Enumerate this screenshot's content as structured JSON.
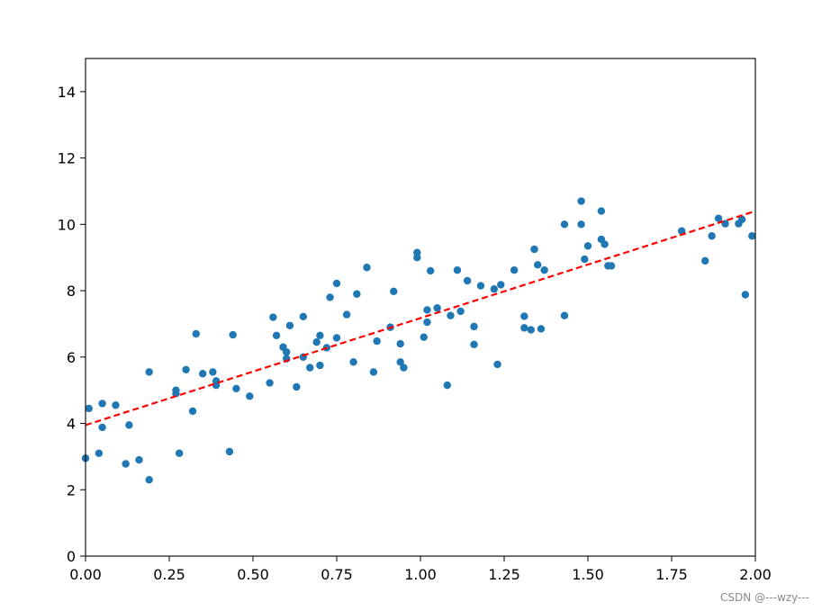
{
  "chart_data": {
    "type": "scatter",
    "title": "",
    "xlabel": "",
    "ylabel": "",
    "xlim": [
      0,
      2
    ],
    "ylim": [
      0,
      15
    ],
    "x_ticks": [
      "0.00",
      "0.25",
      "0.50",
      "0.75",
      "1.00",
      "1.25",
      "1.50",
      "1.75",
      "2.00"
    ],
    "y_ticks": [
      "0",
      "2",
      "4",
      "6",
      "8",
      "10",
      "12",
      "14"
    ],
    "grid": false,
    "legend": "none",
    "colors": {
      "points": "#1f77b4",
      "line": "#ff0000",
      "axes": "#000000"
    },
    "series": [
      {
        "type": "scatter",
        "points": [
          [
            0.0,
            2.95
          ],
          [
            0.01,
            4.45
          ],
          [
            0.04,
            3.1
          ],
          [
            0.05,
            4.6
          ],
          [
            0.05,
            3.88
          ],
          [
            0.09,
            4.55
          ],
          [
            0.12,
            2.78
          ],
          [
            0.13,
            3.95
          ],
          [
            0.16,
            2.9
          ],
          [
            0.19,
            2.3
          ],
          [
            0.19,
            5.55
          ],
          [
            0.27,
            4.9
          ],
          [
            0.27,
            5.0
          ],
          [
            0.28,
            3.1
          ],
          [
            0.3,
            5.62
          ],
          [
            0.32,
            4.37
          ],
          [
            0.33,
            6.7
          ],
          [
            0.35,
            5.5
          ],
          [
            0.38,
            5.55
          ],
          [
            0.39,
            5.15
          ],
          [
            0.39,
            5.28
          ],
          [
            0.43,
            3.15
          ],
          [
            0.44,
            6.67
          ],
          [
            0.45,
            5.05
          ],
          [
            0.49,
            4.82
          ],
          [
            0.55,
            5.22
          ],
          [
            0.56,
            7.2
          ],
          [
            0.57,
            6.65
          ],
          [
            0.59,
            6.3
          ],
          [
            0.6,
            6.15
          ],
          [
            0.6,
            5.95
          ],
          [
            0.61,
            6.95
          ],
          [
            0.63,
            5.1
          ],
          [
            0.65,
            7.22
          ],
          [
            0.65,
            6.0
          ],
          [
            0.67,
            5.68
          ],
          [
            0.69,
            6.45
          ],
          [
            0.7,
            6.65
          ],
          [
            0.7,
            5.75
          ],
          [
            0.72,
            6.28
          ],
          [
            0.73,
            7.8
          ],
          [
            0.75,
            8.22
          ],
          [
            0.75,
            6.58
          ],
          [
            0.78,
            7.28
          ],
          [
            0.8,
            5.85
          ],
          [
            0.81,
            7.9
          ],
          [
            0.84,
            8.7
          ],
          [
            0.86,
            5.55
          ],
          [
            0.87,
            6.48
          ],
          [
            0.91,
            6.9
          ],
          [
            0.92,
            7.98
          ],
          [
            0.94,
            6.4
          ],
          [
            0.94,
            5.85
          ],
          [
            0.95,
            5.68
          ],
          [
            0.99,
            9.0
          ],
          [
            0.99,
            9.15
          ],
          [
            1.01,
            6.6
          ],
          [
            1.02,
            7.05
          ],
          [
            1.02,
            7.42
          ],
          [
            1.03,
            8.6
          ],
          [
            1.05,
            7.48
          ],
          [
            1.08,
            5.15
          ],
          [
            1.09,
            7.25
          ],
          [
            1.11,
            8.62
          ],
          [
            1.12,
            7.38
          ],
          [
            1.14,
            8.3
          ],
          [
            1.16,
            6.92
          ],
          [
            1.16,
            6.38
          ],
          [
            1.18,
            8.15
          ],
          [
            1.22,
            8.05
          ],
          [
            1.23,
            5.78
          ],
          [
            1.24,
            8.18
          ],
          [
            1.28,
            8.62
          ],
          [
            1.31,
            6.88
          ],
          [
            1.31,
            7.23
          ],
          [
            1.33,
            6.82
          ],
          [
            1.34,
            9.25
          ],
          [
            1.35,
            8.78
          ],
          [
            1.36,
            6.85
          ],
          [
            1.37,
            8.62
          ],
          [
            1.43,
            7.25
          ],
          [
            1.43,
            10.0
          ],
          [
            1.48,
            10.7
          ],
          [
            1.48,
            10.0
          ],
          [
            1.49,
            8.95
          ],
          [
            1.5,
            9.35
          ],
          [
            1.54,
            10.4
          ],
          [
            1.54,
            9.55
          ],
          [
            1.55,
            9.4
          ],
          [
            1.56,
            8.75
          ],
          [
            1.57,
            8.75
          ],
          [
            1.78,
            9.8
          ],
          [
            1.85,
            8.9
          ],
          [
            1.87,
            9.65
          ],
          [
            1.89,
            10.18
          ],
          [
            1.91,
            10.02
          ],
          [
            1.95,
            10.02
          ],
          [
            1.96,
            10.15
          ],
          [
            1.97,
            7.88
          ],
          [
            1.99,
            9.65
          ]
        ]
      },
      {
        "type": "line",
        "style": "dashed",
        "points": [
          [
            0,
            3.95
          ],
          [
            2,
            10.4
          ]
        ]
      }
    ]
  },
  "watermark": "CSDN @---wzy---"
}
